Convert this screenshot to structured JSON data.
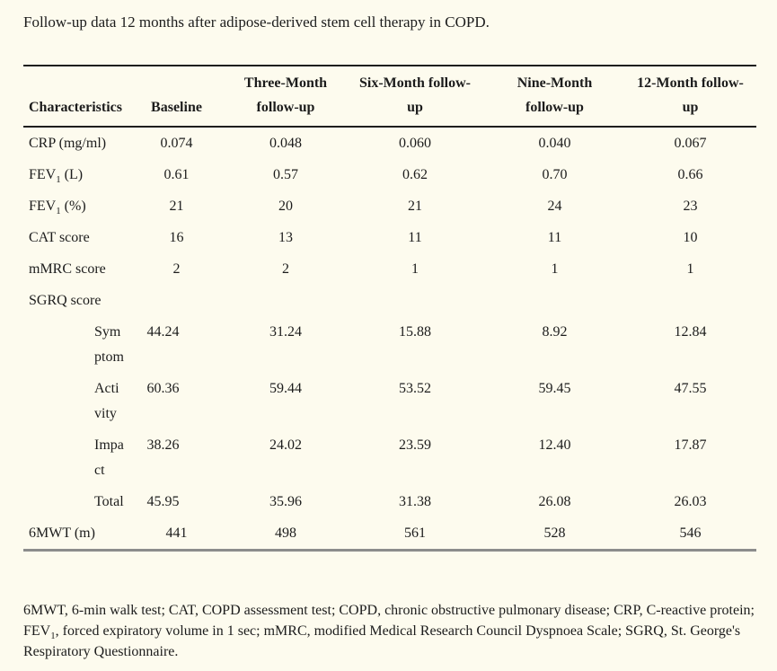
{
  "page": {
    "background_color": "#FDFBEE",
    "title": "Follow-up data 12 months after adipose-derived stem cell therapy in COPD."
  },
  "table": {
    "headers": [
      {
        "text": "Characteristics"
      },
      {
        "text": "Baseline"
      },
      {
        "text": "Three-Month\nfollow-up"
      },
      {
        "text": "Six-Month follow-\nup"
      },
      {
        "text": "Nine-Month\nfollow-up"
      },
      {
        "text": "12-Month follow-\nup"
      }
    ],
    "rows": [
      {
        "type": "main",
        "label_parts": [
          {
            "t": "CRP (mg/ml)"
          }
        ],
        "values": [
          "0.074",
          "0.048",
          "0.060",
          "0.040",
          "0.067"
        ]
      },
      {
        "type": "main",
        "label_parts": [
          {
            "t": "FEV"
          },
          {
            "s": "1"
          },
          {
            "t": " (L)"
          }
        ],
        "values": [
          "0.61",
          "0.57",
          "0.62",
          "0.70",
          "0.66"
        ]
      },
      {
        "type": "main",
        "label_parts": [
          {
            "t": "FEV"
          },
          {
            "s": "1"
          },
          {
            "t": " (%)"
          }
        ],
        "values": [
          "21",
          "20",
          "21",
          "24",
          "23"
        ]
      },
      {
        "type": "main",
        "label_parts": [
          {
            "t": "CAT score"
          }
        ],
        "values": [
          "16",
          "13",
          "11",
          "11",
          "10"
        ]
      },
      {
        "type": "main",
        "label_parts": [
          {
            "t": "mMRC score"
          }
        ],
        "values": [
          "2",
          "2",
          "1",
          "1",
          "1"
        ]
      },
      {
        "type": "group",
        "label_parts": [
          {
            "t": "SGRQ score"
          }
        ],
        "values": [
          "",
          "",
          "",
          "",
          ""
        ]
      },
      {
        "type": "sub",
        "label_parts": [
          {
            "t": "Sym\nptom"
          }
        ],
        "values": [
          "44.24",
          "31.24",
          "15.88",
          "8.92",
          "12.84"
        ]
      },
      {
        "type": "sub",
        "label_parts": [
          {
            "t": "Acti\nvity"
          }
        ],
        "values": [
          "60.36",
          "59.44",
          "53.52",
          "59.45",
          "47.55"
        ]
      },
      {
        "type": "sub",
        "label_parts": [
          {
            "t": "Impa\nct"
          }
        ],
        "values": [
          "38.26",
          "24.02",
          "23.59",
          "12.40",
          "17.87"
        ]
      },
      {
        "type": "sub",
        "label_parts": [
          {
            "t": "Total"
          }
        ],
        "values": [
          "45.95",
          "35.96",
          "31.38",
          "26.08",
          "26.03"
        ]
      },
      {
        "type": "main",
        "label_parts": [
          {
            "t": "6MWT (m)"
          }
        ],
        "values": [
          "441",
          "498",
          "561",
          "528",
          "546"
        ]
      }
    ]
  },
  "footnote": {
    "part1": "6MWT, 6-min walk test; CAT, COPD assessment test; COPD, chronic obstructive pulmonary disease; CRP, C-reactive protein; FEV",
    "sub1": "1",
    "part2": ", forced expiratory volume in 1 sec; mMRC, modified Medical Research Council Dyspnoea Scale; SGRQ, St. George's Respiratory Questionnaire."
  }
}
